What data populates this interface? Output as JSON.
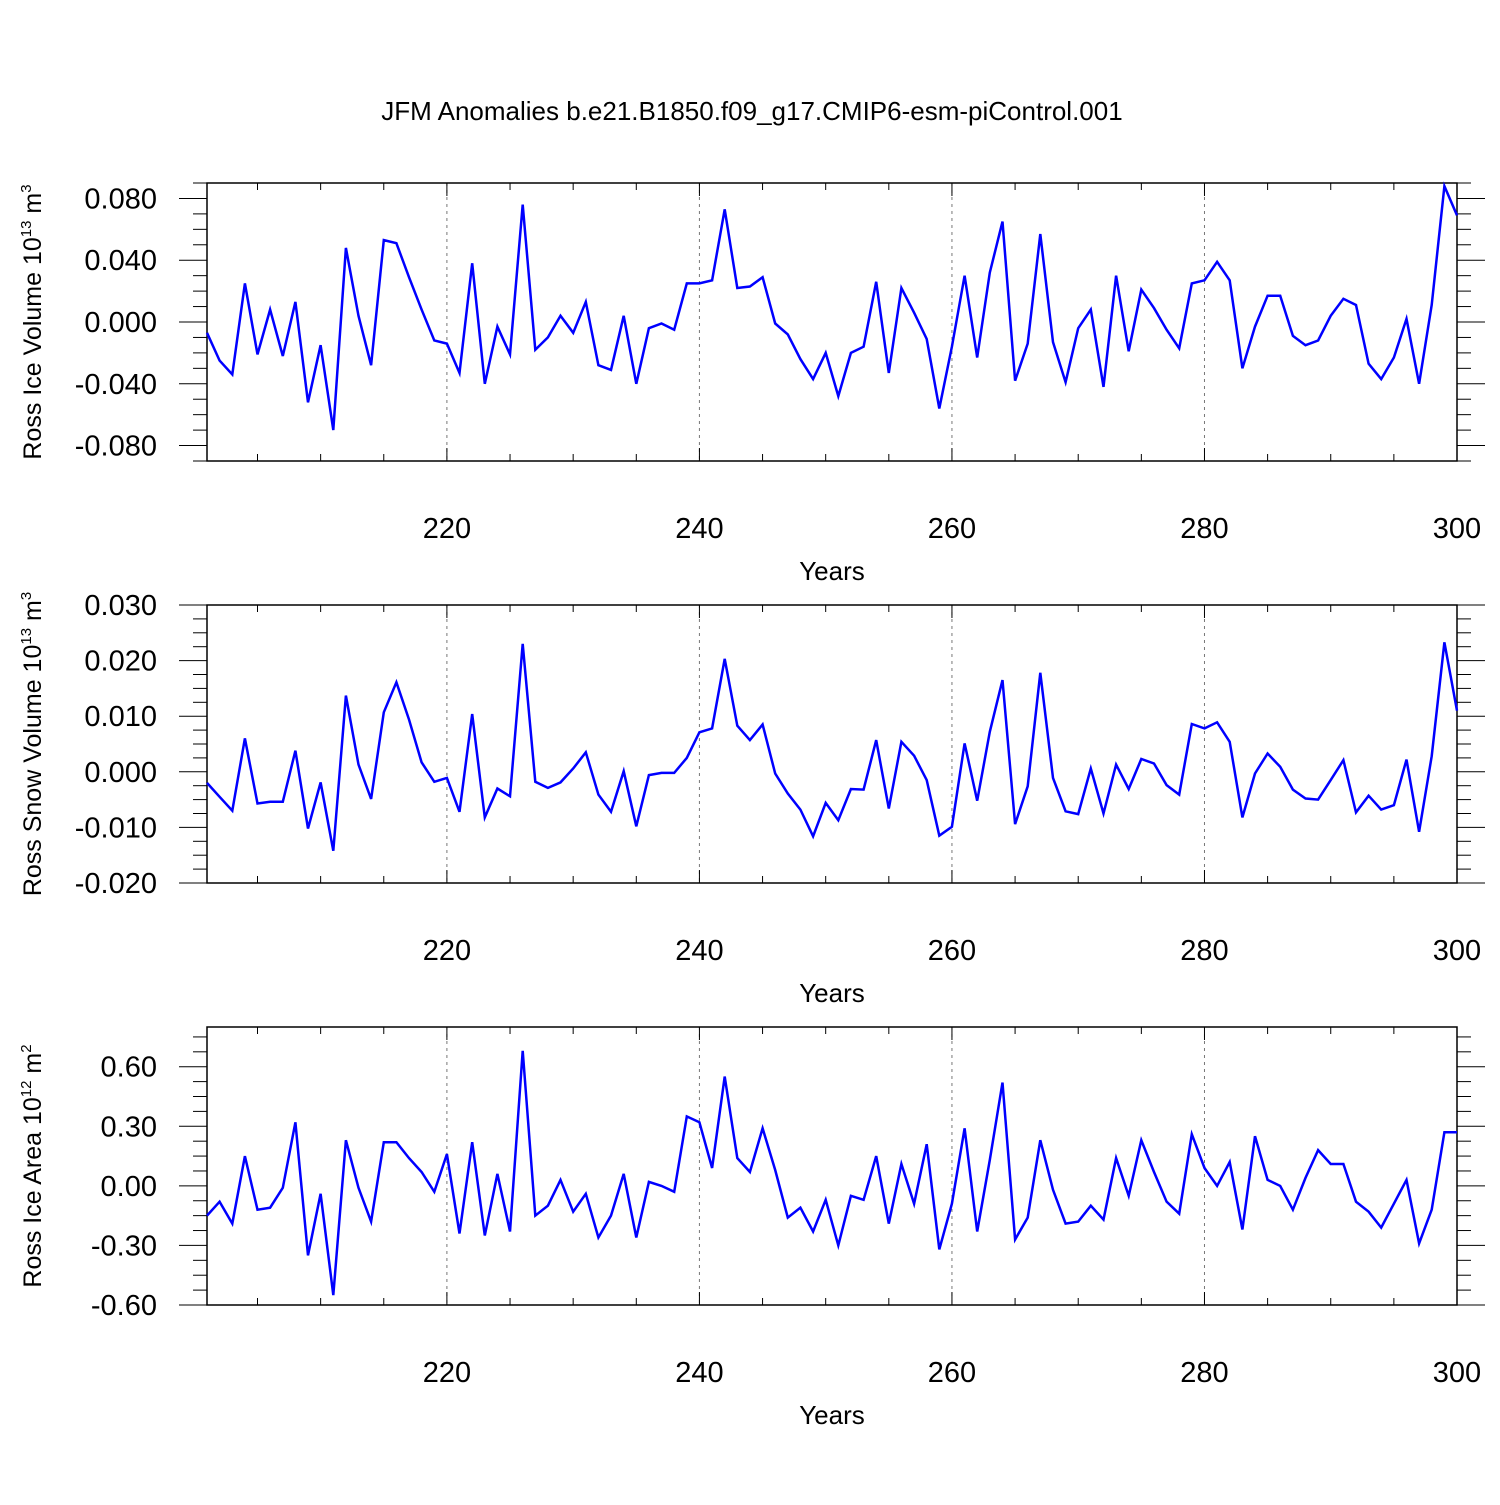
{
  "title": "JFM Anomalies b.e21.B1850.f09_g17.CMIP6-esm-piControl.001",
  "line_color": "#0000ff",
  "chart_data": [
    {
      "type": "line",
      "ylabel": {
        "text": "Ross Ice Volume 10",
        "sup": "13",
        "unit": "m",
        "unit_sup": "3"
      },
      "xlabel": "Years",
      "xlim": [
        201,
        300
      ],
      "ylim": [
        -0.09,
        0.09
      ],
      "xticks": [
        "220",
        "240",
        "260",
        "280",
        "300"
      ],
      "yticks": [
        "0.080",
        "0.040",
        "0.000",
        "-0.040",
        "-0.080"
      ],
      "grid": "dashed vertical lines at 220, 240, 260, 280",
      "series": [
        {
          "x_start": 201,
          "values": [
            -0.007,
            -0.025,
            -0.034,
            0.025,
            -0.021,
            0.008,
            -0.022,
            0.013,
            -0.052,
            -0.015,
            -0.07,
            0.048,
            0.004,
            -0.028,
            0.053,
            0.051,
            0.029,
            0.008,
            -0.012,
            -0.014,
            -0.033,
            0.038,
            -0.04,
            -0.003,
            -0.021,
            0.076,
            -0.018,
            -0.01,
            0.004,
            -0.007,
            0.013,
            -0.028,
            -0.031,
            0.004,
            -0.04,
            -0.004,
            -0.001,
            -0.005,
            0.025,
            0.025,
            0.027,
            0.073,
            0.022,
            0.023,
            0.029,
            -0.001,
            -0.008,
            -0.024,
            -0.037,
            -0.02,
            -0.048,
            -0.02,
            -0.016,
            0.026,
            -0.033,
            0.022,
            0.006,
            -0.011,
            -0.056,
            -0.016,
            0.03,
            -0.023,
            0.032,
            0.065,
            -0.038,
            -0.014,
            0.057,
            -0.013,
            -0.039,
            -0.004,
            0.008,
            -0.042,
            0.03,
            -0.019,
            0.021,
            0.009,
            -0.005,
            -0.017,
            0.025,
            0.027,
            0.039,
            0.027,
            -0.03,
            -0.003,
            0.017,
            0.017,
            -0.009,
            -0.015,
            -0.012,
            0.004,
            0.015,
            0.011,
            -0.027,
            -0.037,
            -0.023,
            0.002,
            -0.04,
            0.011,
            0.088,
            0.069
          ]
        }
      ]
    },
    {
      "type": "line",
      "ylabel": {
        "text": "Ross Snow Volume 10",
        "sup": "13",
        "unit": "m",
        "unit_sup": "3"
      },
      "xlabel": "Years",
      "xlim": [
        201,
        300
      ],
      "ylim": [
        -0.02,
        0.03
      ],
      "xticks": [
        "220",
        "240",
        "260",
        "280",
        "300"
      ],
      "yticks": [
        "0.030",
        "0.020",
        "0.010",
        "0.000",
        "-0.010",
        "-0.020"
      ],
      "grid": "dashed vertical lines at 220, 240, 260, 280",
      "series": [
        {
          "x_start": 201,
          "values": [
            -0.002,
            -0.0045,
            -0.007,
            0.006,
            -0.0057,
            -0.0054,
            -0.0054,
            0.0038,
            -0.0102,
            -0.0019,
            -0.0142,
            0.0137,
            0.0013,
            -0.0049,
            0.0107,
            0.0161,
            0.0094,
            0.0017,
            -0.0018,
            -0.0011,
            -0.0072,
            0.0104,
            -0.0082,
            -0.003,
            -0.0044,
            0.023,
            -0.0018,
            -0.0029,
            -0.0019,
            0.0006,
            0.0035,
            -0.0041,
            -0.0072,
            0.0001,
            -0.0098,
            -0.0006,
            -0.0002,
            -0.0002,
            0.0025,
            0.0071,
            0.0078,
            0.0203,
            0.0083,
            0.0057,
            0.0085,
            -0.0003,
            -0.0039,
            -0.0068,
            -0.0116,
            -0.0056,
            -0.0087,
            -0.0031,
            -0.0032,
            0.0057,
            -0.0066,
            0.0054,
            0.0029,
            -0.0015,
            -0.0115,
            -0.0099,
            0.0051,
            -0.0052,
            0.0072,
            0.0165,
            -0.0094,
            -0.0026,
            0.0178,
            -0.0011,
            -0.0071,
            -0.0076,
            0.0006,
            -0.0075,
            0.0013,
            -0.0031,
            0.0023,
            0.0015,
            -0.0024,
            -0.0041,
            0.0086,
            0.0078,
            0.0089,
            0.0054,
            -0.0082,
            -0.0003,
            0.0033,
            0.0009,
            -0.0032,
            -0.0048,
            -0.005,
            -0.0015,
            0.0021,
            -0.0073,
            -0.0043,
            -0.0068,
            -0.006,
            0.0022,
            -0.0108,
            0.0028,
            0.0233,
            0.011
          ]
        }
      ]
    },
    {
      "type": "line",
      "ylabel": {
        "text": "Ross Ice Area 10",
        "sup": "12",
        "unit": "m",
        "unit_sup": "2"
      },
      "xlabel": "Years",
      "xlim": [
        201,
        300
      ],
      "ylim": [
        -0.6,
        0.8
      ],
      "xticks": [
        "220",
        "240",
        "260",
        "280",
        "300"
      ],
      "yticks": [
        "0.60",
        "0.30",
        "0.00",
        "-0.30",
        "-0.60"
      ],
      "grid": "dashed vertical lines at 220, 240, 260, 280",
      "series": [
        {
          "x_start": 201,
          "values": [
            -0.15,
            -0.08,
            -0.19,
            0.15,
            -0.12,
            -0.11,
            -0.01,
            0.32,
            -0.35,
            -0.04,
            -0.55,
            0.23,
            -0.01,
            -0.18,
            0.22,
            0.22,
            0.14,
            0.07,
            -0.03,
            0.16,
            -0.24,
            0.22,
            -0.25,
            0.06,
            -0.23,
            0.68,
            -0.15,
            -0.1,
            0.03,
            -0.13,
            -0.04,
            -0.26,
            -0.15,
            0.06,
            -0.26,
            0.02,
            0.0,
            -0.03,
            0.35,
            0.32,
            0.09,
            0.55,
            0.14,
            0.07,
            0.29,
            0.08,
            -0.16,
            -0.11,
            -0.23,
            -0.07,
            -0.3,
            -0.05,
            -0.07,
            0.15,
            -0.19,
            0.11,
            -0.09,
            0.21,
            -0.32,
            -0.09,
            0.29,
            -0.23,
            0.13,
            0.52,
            -0.27,
            -0.16,
            0.23,
            -0.02,
            -0.19,
            -0.18,
            -0.1,
            -0.17,
            0.14,
            -0.05,
            0.23,
            0.07,
            -0.08,
            -0.14,
            0.26,
            0.09,
            0.0,
            0.12,
            -0.22,
            0.25,
            0.03,
            0.0,
            -0.12,
            0.04,
            0.18,
            0.11,
            0.11,
            -0.08,
            -0.13,
            -0.21,
            -0.09,
            0.03,
            -0.29,
            -0.12,
            0.27,
            0.27
          ]
        }
      ]
    }
  ]
}
